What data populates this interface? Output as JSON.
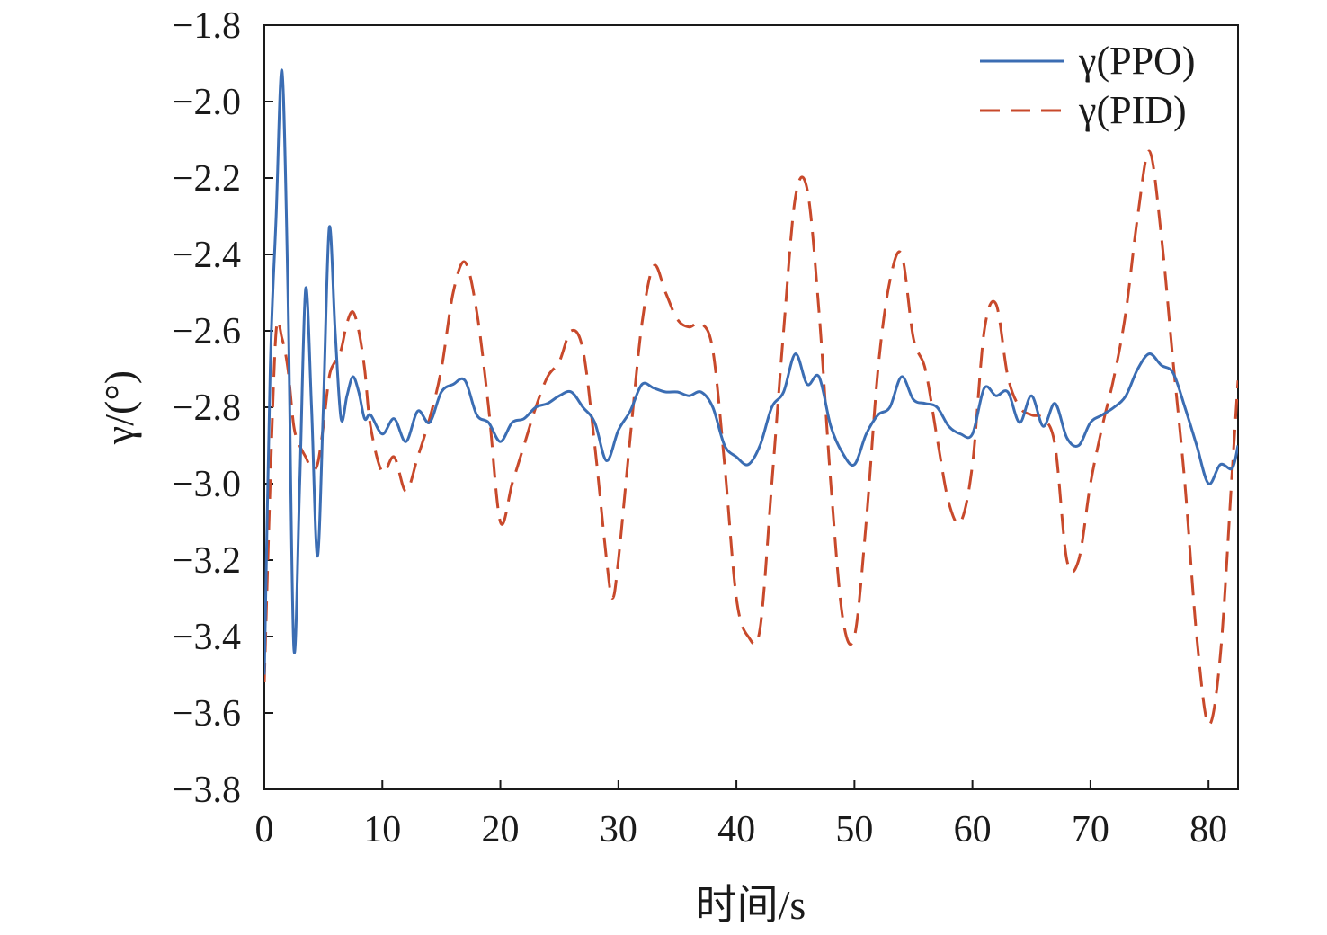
{
  "chart_data": {
    "type": "line",
    "xlabel": "时间/s",
    "ylabel": "γ/(°)",
    "xlim": [
      0,
      82.5
    ],
    "ylim": [
      -3.8,
      -1.8
    ],
    "x_ticks": [
      0,
      10,
      20,
      30,
      40,
      50,
      60,
      70,
      80
    ],
    "x_tick_labels": [
      "0",
      "10",
      "20",
      "30",
      "40",
      "50",
      "60",
      "70",
      "80"
    ],
    "y_ticks": [
      -1.8,
      -2.0,
      -2.2,
      -2.4,
      -2.6,
      -2.8,
      -3.0,
      -3.2,
      -3.4,
      -3.6,
      -3.8
    ],
    "y_tick_labels": [
      "−1.8",
      "−2.0",
      "−2.2",
      "−2.4",
      "−2.6",
      "−2.8",
      "−3.0",
      "−3.2",
      "−3.4",
      "−3.6",
      "−3.8"
    ],
    "grid": false,
    "legend_position": "top-right",
    "series": [
      {
        "name": "γ(PPO)",
        "color": "#3b6db3",
        "dash": "solid",
        "x": [
          0,
          0.5,
          1,
          1.5,
          2,
          2.5,
          3,
          3.5,
          4,
          4.5,
          5,
          5.5,
          6,
          6.5,
          7,
          7.5,
          8,
          8.5,
          9,
          10,
          11,
          12,
          13,
          14,
          15,
          16,
          17,
          18,
          19,
          20,
          21,
          22,
          23,
          24,
          25,
          26,
          27,
          28,
          29,
          30,
          31,
          32,
          33,
          34,
          35,
          36,
          37,
          38,
          39,
          40,
          41,
          42,
          43,
          44,
          45,
          46,
          47,
          48,
          49,
          50,
          51,
          52,
          53,
          54,
          55,
          56,
          57,
          58,
          59,
          60,
          61,
          62,
          63,
          64,
          65,
          66,
          67,
          68,
          69,
          70,
          71,
          72,
          73,
          74,
          75,
          76,
          77,
          78,
          79,
          80,
          81,
          82,
          82.5
        ],
        "y": [
          -3.5,
          -2.7,
          -2.3,
          -1.92,
          -2.5,
          -3.43,
          -3.0,
          -2.49,
          -2.8,
          -3.19,
          -2.8,
          -2.33,
          -2.6,
          -2.83,
          -2.77,
          -2.72,
          -2.76,
          -2.83,
          -2.82,
          -2.87,
          -2.83,
          -2.89,
          -2.81,
          -2.84,
          -2.76,
          -2.74,
          -2.73,
          -2.82,
          -2.84,
          -2.89,
          -2.84,
          -2.83,
          -2.8,
          -2.79,
          -2.77,
          -2.76,
          -2.8,
          -2.84,
          -2.94,
          -2.86,
          -2.81,
          -2.74,
          -2.75,
          -2.76,
          -2.76,
          -2.77,
          -2.76,
          -2.8,
          -2.9,
          -2.93,
          -2.95,
          -2.9,
          -2.8,
          -2.76,
          -2.66,
          -2.74,
          -2.72,
          -2.85,
          -2.92,
          -2.95,
          -2.87,
          -2.82,
          -2.8,
          -2.72,
          -2.78,
          -2.79,
          -2.8,
          -2.85,
          -2.87,
          -2.87,
          -2.75,
          -2.77,
          -2.76,
          -2.84,
          -2.77,
          -2.85,
          -2.79,
          -2.88,
          -2.9,
          -2.84,
          -2.82,
          -2.8,
          -2.77,
          -2.7,
          -2.66,
          -2.69,
          -2.71,
          -2.8,
          -2.9,
          -3.0,
          -2.95,
          -2.96,
          -2.9
        ]
      },
      {
        "name": "γ(PID)",
        "color": "#c8492b",
        "dash": "dashed",
        "x": [
          0,
          0.5,
          1,
          1.5,
          2,
          2.5,
          3,
          3.5,
          4,
          4.5,
          5,
          5.5,
          6,
          6.5,
          7,
          7.5,
          8,
          8.5,
          9,
          10,
          11,
          12,
          13,
          14,
          15,
          16,
          17,
          18,
          19,
          20,
          21,
          22,
          23,
          24,
          25,
          26,
          27,
          28,
          29,
          29.5,
          30,
          31,
          32,
          33,
          34,
          35,
          36,
          37,
          38,
          39,
          40,
          41,
          42,
          43,
          44,
          45,
          46,
          47,
          48,
          49,
          50,
          51,
          52,
          53,
          54,
          55,
          56,
          57,
          58,
          59,
          60,
          61,
          62,
          63,
          64,
          65,
          66,
          67,
          68,
          69,
          70,
          71,
          72,
          73,
          74,
          75,
          76,
          77,
          78,
          79,
          80,
          81,
          82,
          82.5
        ],
        "y": [
          -3.52,
          -3.0,
          -2.6,
          -2.62,
          -2.7,
          -2.85,
          -2.9,
          -2.93,
          -2.96,
          -2.95,
          -2.85,
          -2.72,
          -2.68,
          -2.65,
          -2.58,
          -2.55,
          -2.6,
          -2.7,
          -2.85,
          -2.97,
          -2.93,
          -3.02,
          -2.93,
          -2.83,
          -2.7,
          -2.5,
          -2.42,
          -2.55,
          -2.8,
          -3.1,
          -3.0,
          -2.9,
          -2.8,
          -2.72,
          -2.68,
          -2.6,
          -2.65,
          -2.9,
          -3.2,
          -3.3,
          -3.2,
          -2.88,
          -2.58,
          -2.43,
          -2.5,
          -2.57,
          -2.59,
          -2.58,
          -2.65,
          -2.95,
          -3.3,
          -3.4,
          -3.38,
          -3.0,
          -2.6,
          -2.25,
          -2.23,
          -2.55,
          -3.0,
          -3.35,
          -3.4,
          -3.1,
          -2.7,
          -2.47,
          -2.4,
          -2.62,
          -2.7,
          -2.88,
          -3.05,
          -3.1,
          -2.95,
          -2.6,
          -2.53,
          -2.72,
          -2.8,
          -2.82,
          -2.83,
          -2.9,
          -3.2,
          -3.2,
          -3.0,
          -2.85,
          -2.72,
          -2.55,
          -2.3,
          -2.13,
          -2.35,
          -2.68,
          -3.0,
          -3.4,
          -3.63,
          -3.45,
          -2.97,
          -2.73
        ]
      }
    ]
  }
}
